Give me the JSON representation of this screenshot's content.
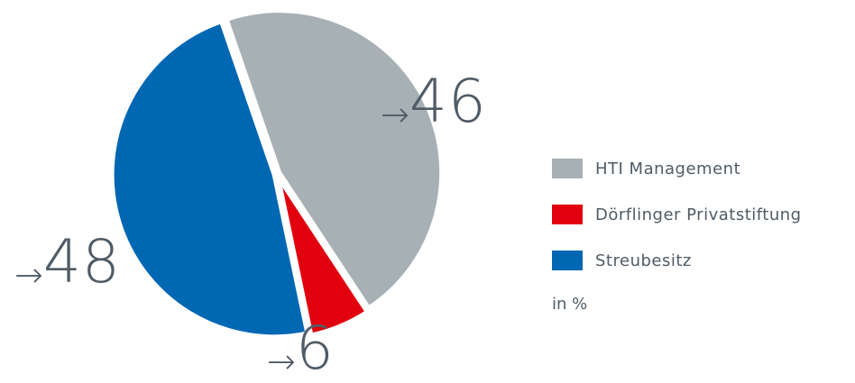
{
  "chart_data": {
    "type": "pie",
    "slices": [
      {
        "label": "HTI Management",
        "value": 46,
        "color": "#a7b0b4"
      },
      {
        "label": "Dörflinger Privatstiftung",
        "value": 6,
        "color": "#e2000f"
      },
      {
        "label": "Streubesitz",
        "value": 48,
        "color": "#0067b3"
      }
    ],
    "unit": "in %",
    "arrow": "→",
    "legend_position": "right"
  }
}
